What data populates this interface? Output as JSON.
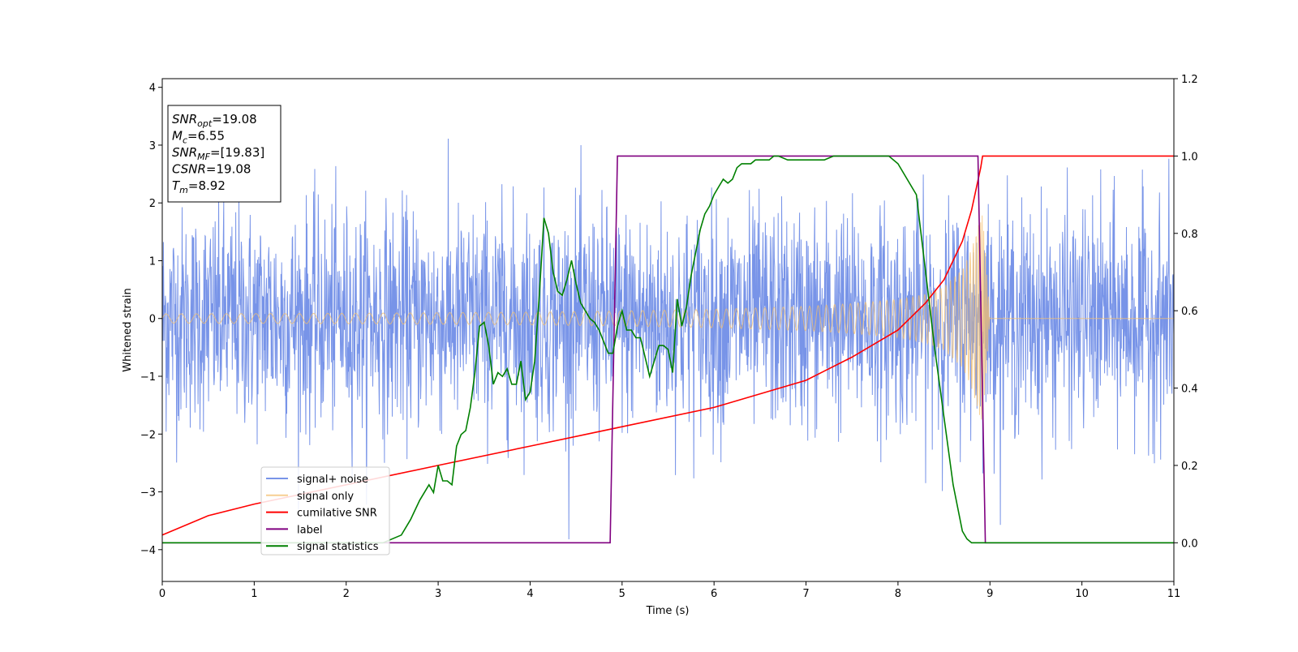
{
  "chart_data": {
    "type": "line",
    "title": "",
    "xlabel": "Time (s)",
    "ylabel": "Whitened strain",
    "xlim": [
      0,
      11
    ],
    "ylim": [
      -4.55,
      4.15
    ],
    "y2lim": [
      -0.1,
      1.2
    ],
    "grid": false,
    "legend_placement": "lower-left",
    "x_ticks": [
      0,
      1,
      2,
      3,
      4,
      5,
      6,
      7,
      8,
      9,
      10,
      11
    ],
    "y_ticks": [
      4,
      3,
      2,
      1,
      0,
      -1,
      -2,
      -3,
      -4
    ],
    "y_tick_labels": [
      "4",
      "3",
      "2",
      "1",
      "0",
      "−1",
      "−2",
      "−3",
      "−4"
    ],
    "y2_ticks": [
      1.2,
      1.0,
      0.8,
      0.6,
      0.4,
      0.2,
      0.0
    ],
    "y2_tick_labels": [
      "1.2",
      "1.0",
      "0.8",
      "0.6",
      "0.4",
      "0.2",
      "0.0"
    ],
    "annotation": {
      "lines": [
        {
          "base": "SNR",
          "sub": "opt",
          "rest": "=19.08"
        },
        {
          "base": "M",
          "sub": "c",
          "rest": "=6.55"
        },
        {
          "base": "SNR",
          "sub": "MF",
          "rest": "=[19.83]"
        },
        {
          "base": "CSNR",
          "sub": "",
          "rest": "=19.08"
        },
        {
          "base": "T",
          "sub": "m",
          "rest": "=8.92"
        }
      ]
    },
    "series": [
      {
        "name": "signal+ noise",
        "axis": "left",
        "color": "#7894e8",
        "description_values": {
          "noise_band_typical": [
            -1.5,
            1.5
          ],
          "max_spike": 3.8,
          "min_spike": -4.0
        }
      },
      {
        "name": "signal only",
        "axis": "left",
        "color": "#f5c06e",
        "amplitude_envelope": {
          "x": [
            0,
            2,
            4,
            5,
            6,
            7,
            7.5,
            8,
            8.3,
            8.5,
            8.7,
            8.8,
            8.87,
            8.92,
            9.0,
            11
          ],
          "y": [
            0.08,
            0.09,
            0.11,
            0.13,
            0.16,
            0.21,
            0.26,
            0.33,
            0.42,
            0.55,
            0.85,
            1.2,
            1.6,
            1.8,
            0,
            0
          ]
        }
      },
      {
        "name": "cumilative SNR",
        "axis": "right",
        "color": "#ff0000",
        "x": [
          0,
          0.5,
          1,
          2,
          3,
          4,
          5,
          6,
          7,
          7.5,
          8,
          8.3,
          8.5,
          8.7,
          8.8,
          8.9,
          8.92,
          11
        ],
        "y": [
          0.02,
          0.07,
          0.1,
          0.15,
          0.2,
          0.25,
          0.3,
          0.35,
          0.42,
          0.48,
          0.55,
          0.62,
          0.68,
          0.78,
          0.86,
          0.97,
          1.0,
          1.0
        ]
      },
      {
        "name": "label",
        "axis": "right",
        "color": "#800080",
        "x": [
          0,
          4.87,
          4.95,
          8.87,
          8.95,
          11
        ],
        "y": [
          0.0,
          0.0,
          1.0,
          1.0,
          0.0,
          0.0
        ]
      },
      {
        "name": "signal statistics",
        "axis": "right",
        "color": "#008000",
        "x": [
          0,
          2.0,
          2.4,
          2.6,
          2.7,
          2.8,
          2.9,
          2.95,
          3.0,
          3.05,
          3.1,
          3.15,
          3.2,
          3.25,
          3.3,
          3.35,
          3.4,
          3.45,
          3.5,
          3.55,
          3.6,
          3.65,
          3.7,
          3.75,
          3.8,
          3.85,
          3.9,
          3.95,
          4.0,
          4.05,
          4.1,
          4.15,
          4.2,
          4.25,
          4.3,
          4.35,
          4.4,
          4.45,
          4.5,
          4.55,
          4.6,
          4.65,
          4.7,
          4.75,
          4.8,
          4.85,
          4.9,
          4.95,
          5.0,
          5.05,
          5.1,
          5.15,
          5.2,
          5.25,
          5.3,
          5.35,
          5.4,
          5.45,
          5.5,
          5.55,
          5.6,
          5.65,
          5.7,
          5.75,
          5.8,
          5.85,
          5.9,
          5.95,
          6.0,
          6.05,
          6.1,
          6.15,
          6.2,
          6.25,
          6.3,
          6.35,
          6.4,
          6.45,
          6.5,
          6.55,
          6.6,
          6.65,
          6.7,
          6.8,
          6.9,
          7.0,
          7.1,
          7.2,
          7.3,
          7.4,
          7.5,
          7.6,
          7.7,
          7.8,
          7.9,
          8.0,
          8.2,
          8.4,
          8.6,
          8.7,
          8.75,
          8.8,
          8.85,
          8.9,
          8.95,
          9.0,
          9.05,
          11
        ],
        "y": [
          0.0,
          0.0,
          0.0,
          0.02,
          0.06,
          0.11,
          0.15,
          0.13,
          0.2,
          0.16,
          0.16,
          0.15,
          0.25,
          0.28,
          0.29,
          0.35,
          0.44,
          0.56,
          0.57,
          0.51,
          0.41,
          0.44,
          0.43,
          0.45,
          0.41,
          0.41,
          0.47,
          0.37,
          0.39,
          0.47,
          0.64,
          0.84,
          0.8,
          0.7,
          0.65,
          0.64,
          0.68,
          0.73,
          0.67,
          0.62,
          0.6,
          0.58,
          0.57,
          0.55,
          0.52,
          0.49,
          0.49,
          0.56,
          0.6,
          0.55,
          0.55,
          0.53,
          0.53,
          0.48,
          0.43,
          0.47,
          0.51,
          0.51,
          0.5,
          0.44,
          0.63,
          0.56,
          0.61,
          0.69,
          0.75,
          0.81,
          0.85,
          0.87,
          0.9,
          0.92,
          0.94,
          0.93,
          0.94,
          0.97,
          0.98,
          0.98,
          0.98,
          0.99,
          0.99,
          0.99,
          0.99,
          1.0,
          1.0,
          0.99,
          0.99,
          0.99,
          0.99,
          0.99,
          1.0,
          1.0,
          1.0,
          1.0,
          1.0,
          1.0,
          1.0,
          0.98,
          0.9,
          0.5,
          0.15,
          0.03,
          0.01,
          0.0,
          0.0,
          0.0,
          0.0,
          0.0,
          0.0,
          0.0
        ]
      }
    ]
  }
}
